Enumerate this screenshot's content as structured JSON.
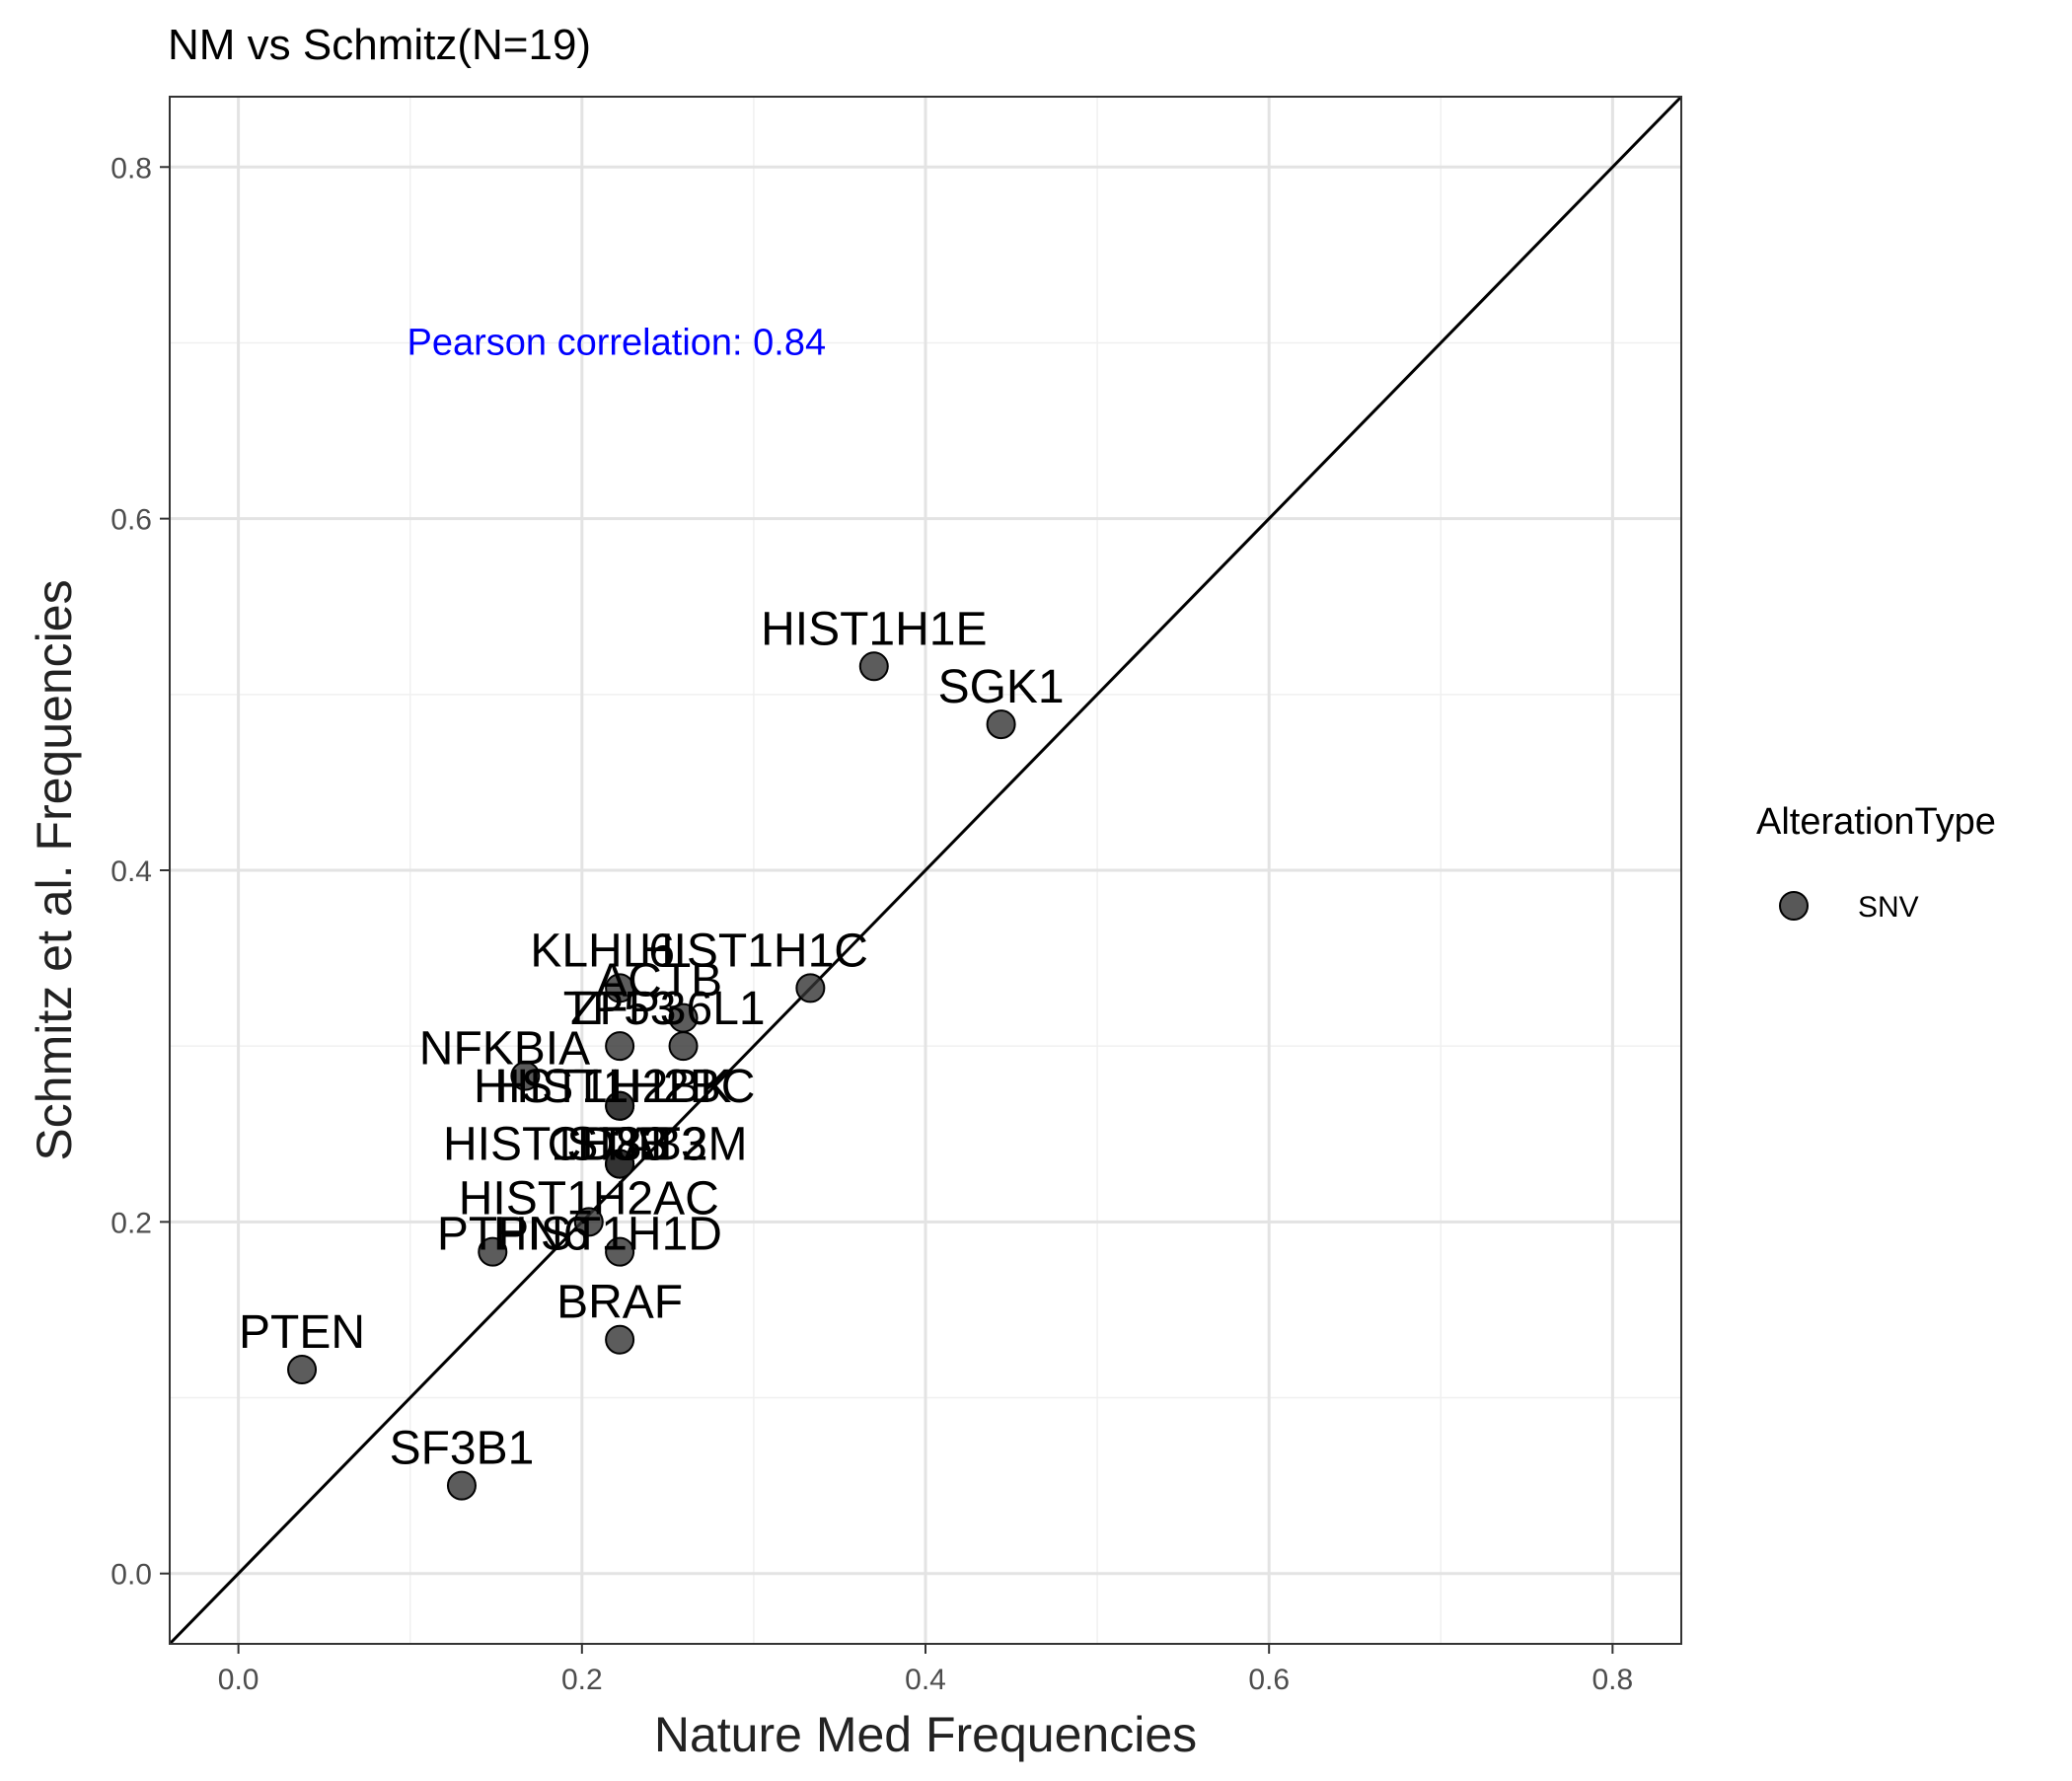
{
  "chart_data": {
    "type": "scatter",
    "title": "NM vs Schmitz(N=19)",
    "xlabel": "Nature Med Frequencies",
    "ylabel": "Schmitz et al. Frequencies",
    "xlim": [
      -0.04,
      0.84
    ],
    "ylim": [
      -0.04,
      0.84
    ],
    "x_ticks": [
      0.0,
      0.2,
      0.4,
      0.6,
      0.8
    ],
    "x_tick_labels": [
      "0.0",
      "0.2",
      "0.4",
      "0.6",
      "0.8"
    ],
    "y_ticks": [
      0.0,
      0.2,
      0.4,
      0.6,
      0.8
    ],
    "y_tick_labels": [
      "0.0",
      "0.2",
      "0.4",
      "0.6",
      "0.8"
    ],
    "grid": true,
    "reference_line": {
      "type": "identity",
      "slope": 1,
      "intercept": 0
    },
    "annotation": {
      "text": "Pearson correlation: 0.84",
      "x": 0.2,
      "y": 0.7,
      "color": "#0000ff"
    },
    "legend": {
      "title": "AlterationType",
      "position": "right",
      "entries": [
        {
          "label": "SNV",
          "color": "#333333"
        }
      ]
    },
    "point_color": "#333333",
    "series": [
      {
        "name": "SNV",
        "points": [
          {
            "gene": "HIST1H1E",
            "x": 0.37,
            "y": 0.516
          },
          {
            "gene": "SGK1",
            "x": 0.444,
            "y": 0.483
          },
          {
            "gene": "KLHL6",
            "x": 0.222,
            "y": 0.333
          },
          {
            "gene": "HIST1H1C",
            "x": 0.333,
            "y": 0.333
          },
          {
            "gene": "ACTB",
            "x": 0.259,
            "y": 0.316
          },
          {
            "gene": "ZFP36L1",
            "x": 0.259,
            "y": 0.3
          },
          {
            "gene": "TP53",
            "x": 0.222,
            "y": 0.3
          },
          {
            "gene": "NFKBIA",
            "x": 0.167,
            "y": 0.283
          },
          {
            "gene": "HIST1H2BC",
            "x": 0.222,
            "y": 0.266
          },
          {
            "gene": "HIST1H2BK",
            "x": 0.222,
            "y": 0.266
          },
          {
            "gene": "HIST1H3B",
            "x": 0.222,
            "y": 0.233
          },
          {
            "gene": "CD83",
            "x": 0.222,
            "y": 0.233
          },
          {
            "gene": "B2M",
            "x": 0.222,
            "y": 0.233
          },
          {
            "gene": "STAT3",
            "x": 0.222,
            "y": 0.233
          },
          {
            "gene": "HIST1H2AC",
            "x": 0.204,
            "y": 0.2
          },
          {
            "gene": "PTPN6",
            "x": 0.148,
            "y": 0.183
          },
          {
            "gene": "HIST1H1D",
            "x": 0.222,
            "y": 0.183
          },
          {
            "gene": "BRAF",
            "x": 0.222,
            "y": 0.133
          },
          {
            "gene": "PTEN",
            "x": 0.037,
            "y": 0.116
          },
          {
            "gene": "SF3B1",
            "x": 0.13,
            "y": 0.05
          }
        ]
      }
    ],
    "point_labels": [
      {
        "text": "HIST1H1E",
        "x": 0.37,
        "y": 0.516,
        "anchor": "middle",
        "dy": -22
      },
      {
        "text": "SGK1",
        "x": 0.444,
        "y": 0.483,
        "anchor": "middle",
        "dy": -22
      },
      {
        "text": "KLHL6",
        "x": 0.212,
        "y": 0.333,
        "anchor": "middle",
        "dy": -22
      },
      {
        "text": "HIST1H1C",
        "x": 0.3,
        "y": 0.333,
        "anchor": "middle",
        "dy": -22
      },
      {
        "text": "ACTB",
        "x": 0.245,
        "y": 0.316,
        "anchor": "middle",
        "dy": -22
      },
      {
        "text": "ZFP36L1",
        "x": 0.25,
        "y": 0.3,
        "anchor": "middle",
        "dy": -22
      },
      {
        "text": "TP53",
        "x": 0.222,
        "y": 0.3,
        "anchor": "middle",
        "dy": -22
      },
      {
        "text": "NFKBIA",
        "x": 0.155,
        "y": 0.283,
        "anchor": "middle",
        "dy": -12
      },
      {
        "text": "HIST1H2BC",
        "x": 0.225,
        "y": 0.266,
        "anchor": "middle",
        "dy": -4
      },
      {
        "text": "HIST1H2BK",
        "x": 0.212,
        "y": 0.266,
        "anchor": "middle",
        "dy": -4
      },
      {
        "text": "HIST1H3B",
        "x": 0.185,
        "y": 0.233,
        "anchor": "middle",
        "dy": -4
      },
      {
        "text": "CD83",
        "x": 0.215,
        "y": 0.233,
        "anchor": "middle",
        "dy": -4
      },
      {
        "text": "B2M",
        "x": 0.268,
        "y": 0.233,
        "anchor": "middle",
        "dy": -4
      },
      {
        "text": "STAT3",
        "x": 0.232,
        "y": 0.233,
        "anchor": "middle",
        "dy": -4
      },
      {
        "text": "HIST1H2AC",
        "x": 0.204,
        "y": 0.2,
        "anchor": "middle",
        "dy": -8
      },
      {
        "text": "PTPN6",
        "x": 0.16,
        "y": 0.183,
        "anchor": "middle",
        "dy": -2
      },
      {
        "text": "HIST1H1D",
        "x": 0.215,
        "y": 0.183,
        "anchor": "middle",
        "dy": -2
      },
      {
        "text": "BRAF",
        "x": 0.222,
        "y": 0.133,
        "anchor": "middle",
        "dy": -22
      },
      {
        "text": "PTEN",
        "x": 0.037,
        "y": 0.116,
        "anchor": "middle",
        "dy": -22
      },
      {
        "text": "SF3B1",
        "x": 0.13,
        "y": 0.05,
        "anchor": "middle",
        "dy": -22
      }
    ]
  }
}
